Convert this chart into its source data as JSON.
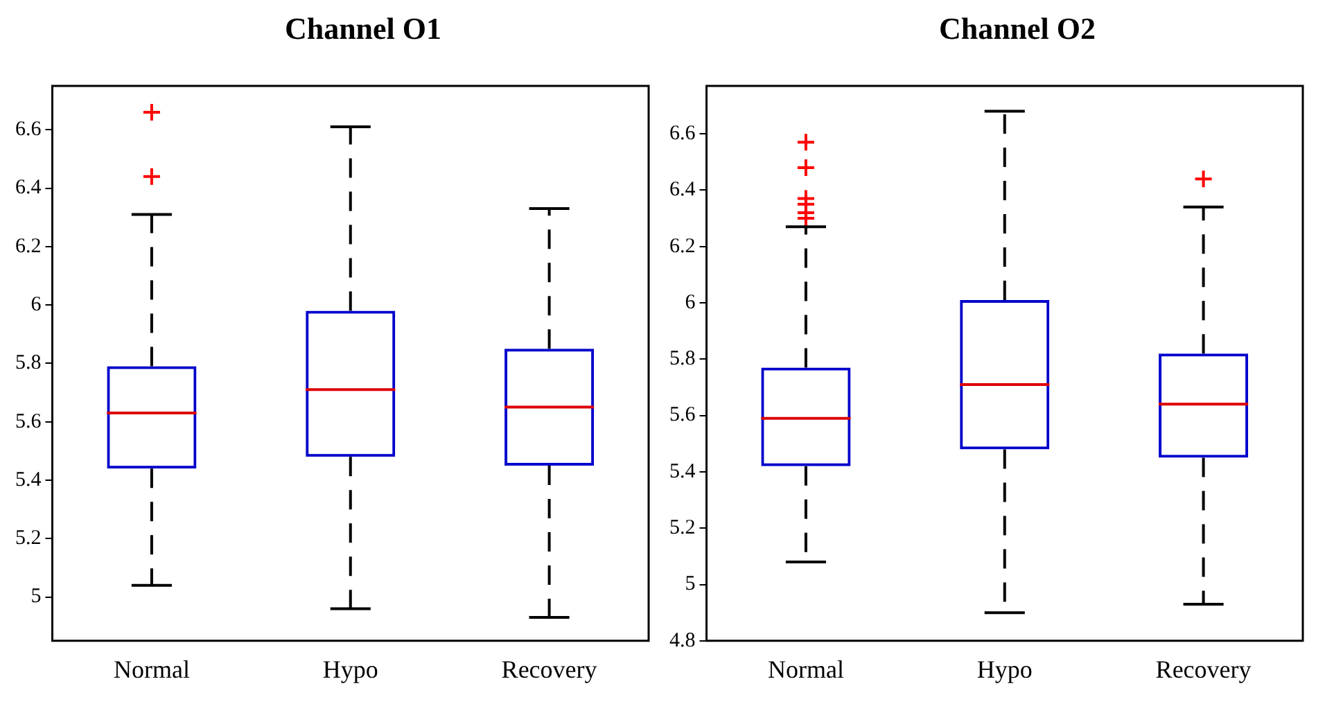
{
  "chart_data": [
    {
      "type": "box",
      "title": "Channel O1",
      "categories": [
        "Normal",
        "Hypo",
        "Recovery"
      ],
      "ylim": [
        4.85,
        6.75
      ],
      "yticks": [
        5,
        5.2,
        5.4,
        5.6,
        5.8,
        6,
        6.2,
        6.4,
        6.6
      ],
      "series": [
        {
          "color": "#0000cc",
          "boxes": [
            {
              "low": 5.04,
              "q1": 5.44,
              "median": 5.63,
              "q3": 5.79,
              "high": 6.31,
              "outliers": [
                6.66,
                6.44
              ]
            },
            {
              "low": 4.96,
              "q1": 5.48,
              "median": 5.71,
              "q3": 5.98,
              "high": 6.61
            },
            {
              "low": 4.93,
              "q1": 5.45,
              "median": 5.65,
              "q3": 5.85,
              "high": 6.33
            }
          ]
        }
      ]
    },
    {
      "type": "box",
      "title": "Channel O2",
      "categories": [
        "Normal",
        "Hypo",
        "Recovery"
      ],
      "ylim": [
        4.8,
        6.77
      ],
      "yticks": [
        4.8,
        5,
        5.2,
        5.4,
        5.6,
        5.8,
        6,
        6.2,
        6.4,
        6.6
      ],
      "series": [
        {
          "color": "#0000cc",
          "boxes": [
            {
              "low": 5.08,
              "q1": 5.42,
              "median": 5.59,
              "q3": 5.77,
              "high": 6.27,
              "outliers": [
                6.57,
                6.48,
                6.37,
                6.35,
                6.32,
                6.3
              ]
            },
            {
              "low": 4.9,
              "q1": 5.48,
              "median": 5.71,
              "q3": 6.01,
              "high": 6.68
            },
            {
              "low": 4.93,
              "q1": 5.45,
              "median": 5.64,
              "q3": 5.82,
              "high": 6.34,
              "outliers": [
                6.44
              ]
            }
          ]
        }
      ]
    }
  ]
}
